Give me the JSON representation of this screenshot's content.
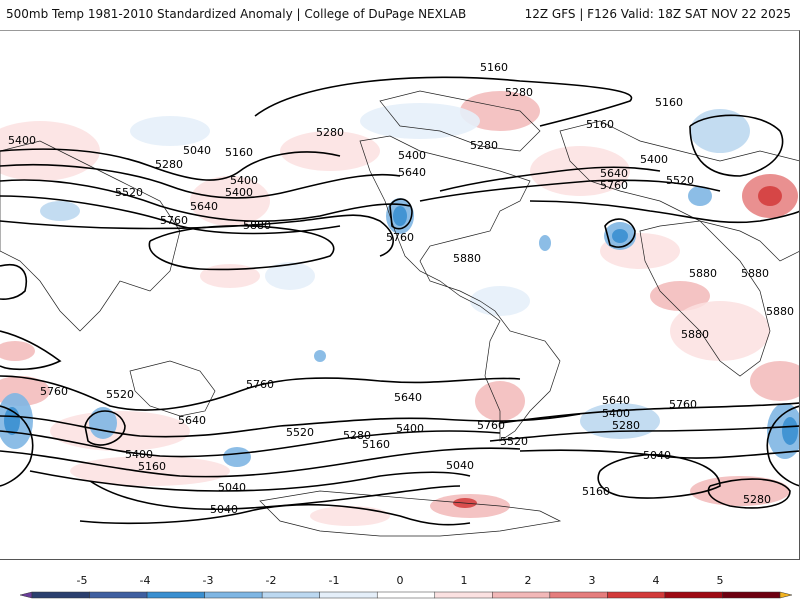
{
  "header": {
    "left_title": "500mb Temp 1981-2010 Standardized Anomaly | College of DuPage NEXLAB",
    "right_title": "12Z GFS | F126 Valid: 18Z SAT NOV 22 2025"
  },
  "map": {
    "contour_labels": [
      "5160",
      "5280",
      "5160",
      "5400",
      "5040",
      "5160",
      "5280",
      "5400",
      "5520",
      "5400",
      "5640",
      "5760",
      "5880",
      "5280",
      "5400",
      "5640",
      "5760",
      "5280",
      "5160",
      "5400",
      "5520",
      "5640",
      "5760",
      "5880",
      "5880",
      "5880",
      "5880",
      "5880",
      "5760",
      "5760",
      "5520",
      "5640",
      "5400",
      "5160",
      "5040",
      "5040",
      "5520",
      "5280",
      "5160",
      "5400",
      "5640",
      "5760",
      "5520",
      "5640",
      "5400",
      "5280",
      "5760",
      "5160",
      "5040",
      "5280",
      "5040"
    ]
  },
  "colorbar": {
    "tick_labels": [
      "-5",
      "-4",
      "-3",
      "-2",
      "-1",
      "0",
      "1",
      "2",
      "3",
      "4",
      "5"
    ],
    "colors": [
      "#6a3d9a",
      "#2b3f6e",
      "#3f5fa0",
      "#3a8fd0",
      "#7fb6e3",
      "#bcd8f0",
      "#e5eff9",
      "#ffffff",
      "#fbe1e1",
      "#f2b8b8",
      "#e57d7d",
      "#d23a3a",
      "#9e0a14",
      "#6d0010",
      "#f2b320"
    ]
  }
}
